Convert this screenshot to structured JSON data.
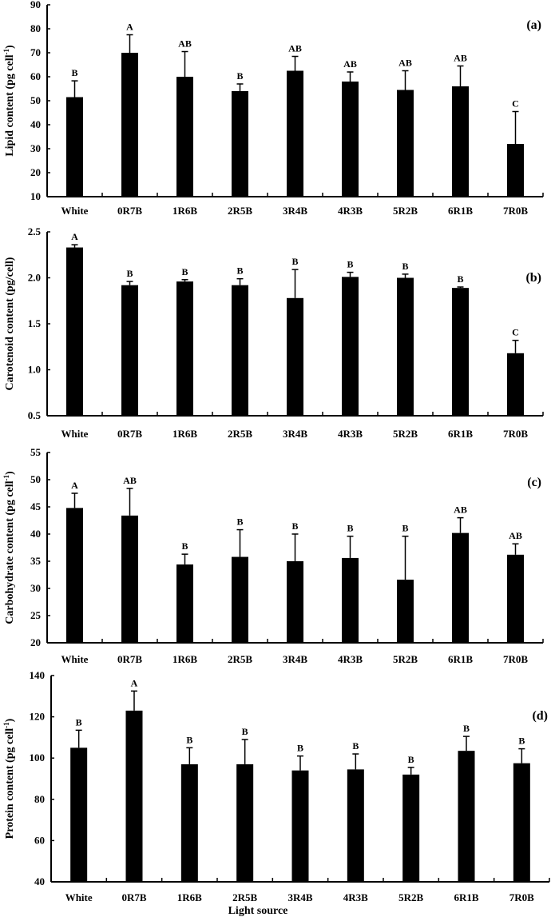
{
  "chart_data": [
    {
      "type": "bar",
      "panel": "(a)",
      "ylabel": "Lipid content (pg cell",
      "ylabel_sup": "-1",
      "ylabel_end": ")",
      "xlabel": "",
      "ylim": [
        10,
        90
      ],
      "yticks": [
        10,
        20,
        30,
        40,
        50,
        60,
        70,
        80,
        90
      ],
      "categories": [
        "White",
        "0R7B",
        "1R6B",
        "2R5B",
        "3R4B",
        "4R3B",
        "5R2B",
        "6R1B",
        "7R0B"
      ],
      "values": [
        51.5,
        70,
        60,
        54,
        62.5,
        58,
        54.5,
        56,
        32
      ],
      "errors": [
        6.8,
        7.5,
        10.5,
        3,
        6,
        4,
        8,
        8.5,
        13.5
      ],
      "significance": [
        "B",
        "A",
        "AB",
        "B",
        "AB",
        "AB",
        "AB",
        "AB",
        "C"
      ]
    },
    {
      "type": "bar",
      "panel": "(b)",
      "ylabel": "Carotenoid content (pg/cell)",
      "ylabel_sup": "",
      "ylabel_end": "",
      "xlabel": "",
      "ylim": [
        0.5,
        2.5
      ],
      "yticks": [
        "0.5",
        "1.0",
        "1.5",
        "2.0",
        "2.5"
      ],
      "categories": [
        "White",
        "0R7B",
        "1R6B",
        "2R5B",
        "3R4B",
        "4R3B",
        "5R2B",
        "6R1B",
        "7R0B"
      ],
      "values": [
        2.33,
        1.92,
        1.96,
        1.92,
        1.78,
        2.01,
        2.0,
        1.89,
        1.18
      ],
      "errors": [
        0.03,
        0.04,
        0.02,
        0.07,
        0.31,
        0.05,
        0.04,
        0.01,
        0.14
      ],
      "significance": [
        "A",
        "B",
        "B",
        "B",
        "B",
        "B",
        "B",
        "B",
        "C"
      ]
    },
    {
      "type": "bar",
      "panel": "(c)",
      "ylabel": "Carbohydrate content (pg cell",
      "ylabel_sup": "-1",
      "ylabel_end": ")",
      "xlabel": "",
      "ylim": [
        20,
        55
      ],
      "yticks": [
        20,
        25,
        30,
        35,
        40,
        45,
        50,
        55
      ],
      "categories": [
        "White",
        "0R7B",
        "1R6B",
        "2R5B",
        "3R4B",
        "4R3B",
        "5R2B",
        "6R1B",
        "7R0B"
      ],
      "values": [
        44.8,
        43.4,
        34.4,
        35.8,
        35,
        35.6,
        31.6,
        40.2,
        36.2
      ],
      "errors": [
        2.7,
        5,
        1.9,
        5,
        5,
        4,
        8,
        2.8,
        2
      ],
      "significance": [
        "A",
        "AB",
        "B",
        "B",
        "B",
        "B",
        "B",
        "AB",
        "AB"
      ]
    },
    {
      "type": "bar",
      "panel": "(d)",
      "ylabel": "Protein content (pg cell",
      "ylabel_sup": "-1",
      "ylabel_end": ")",
      "xlabel": "Light source",
      "ylim": [
        40,
        140
      ],
      "yticks": [
        40,
        60,
        80,
        100,
        120,
        140
      ],
      "categories": [
        "White",
        "0R7B",
        "1R6B",
        "2R5B",
        "3R4B",
        "4R3B",
        "5R2B",
        "6R1B",
        "7R0B"
      ],
      "values": [
        105,
        123,
        97,
        97,
        94,
        94.5,
        92,
        103.5,
        97.5
      ],
      "errors": [
        8.5,
        9.5,
        8,
        12,
        7,
        7.5,
        3.5,
        7,
        7
      ],
      "significance": [
        "B",
        "A",
        "B",
        "B",
        "B",
        "B",
        "B",
        "B",
        "B"
      ]
    }
  ]
}
